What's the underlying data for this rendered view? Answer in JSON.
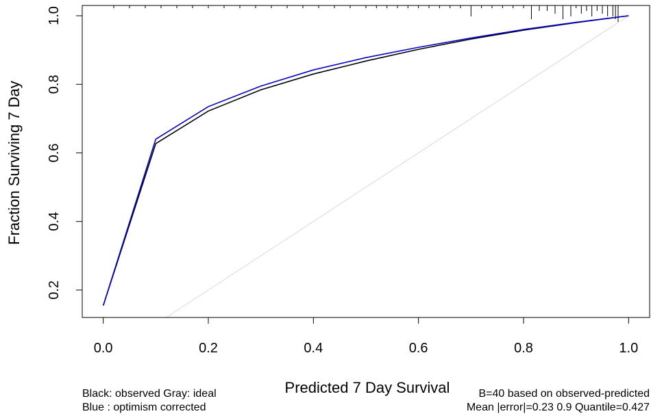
{
  "chart_data": {
    "type": "line",
    "xlabel": "Predicted  7 Day Survival",
    "ylabel": "Fraction Surviving 7 Day",
    "xlim": [
      -0.04,
      1.04
    ],
    "ylim": [
      0.12,
      1.03
    ],
    "x_ticks": [
      0.0,
      0.2,
      0.4,
      0.6,
      0.8,
      1.0
    ],
    "x_tick_labels": [
      "0.0",
      "0.2",
      "0.4",
      "0.6",
      "0.8",
      "1.0"
    ],
    "y_ticks": [
      0.2,
      0.4,
      0.6,
      0.8,
      1.0
    ],
    "y_tick_labels": [
      "0.2",
      "0.4",
      "0.6",
      "0.8",
      "1.0"
    ],
    "grid": false,
    "series": [
      {
        "name": "observed",
        "color": "#000000",
        "x": [
          0.0,
          0.1,
          0.2,
          0.3,
          0.4,
          0.5,
          0.6,
          0.7,
          0.8,
          0.9,
          1.0
        ],
        "y": [
          0.155,
          0.627,
          0.722,
          0.784,
          0.83,
          0.868,
          0.902,
          0.932,
          0.958,
          0.98,
          1.0
        ]
      },
      {
        "name": "optimism corrected",
        "color": "#0000cc",
        "x": [
          0.0,
          0.1,
          0.2,
          0.3,
          0.4,
          0.5,
          0.6,
          0.7,
          0.8,
          0.9,
          1.0
        ],
        "y": [
          0.155,
          0.64,
          0.735,
          0.795,
          0.842,
          0.878,
          0.908,
          0.935,
          0.96,
          0.981,
          1.0
        ]
      },
      {
        "name": "ideal",
        "color": "#d9d9d9",
        "x": [
          0.0,
          1.0
        ],
        "y": [
          0.0,
          1.0
        ]
      }
    ],
    "rug_x": [
      0.02,
      0.05,
      0.08,
      0.11,
      0.14,
      0.17,
      0.2,
      0.23,
      0.26,
      0.29,
      0.32,
      0.35,
      0.38,
      0.41,
      0.44,
      0.47,
      0.5,
      0.52,
      0.54,
      0.56,
      0.58,
      0.6,
      0.62,
      0.64,
      0.66,
      0.68,
      0.7,
      0.72,
      0.74,
      0.76,
      0.78,
      0.8,
      0.815,
      0.83,
      0.845,
      0.86,
      0.875,
      0.89,
      0.9,
      0.91,
      0.92,
      0.93,
      0.94,
      0.95,
      0.96,
      0.97,
      0.975,
      0.98
    ],
    "rug_heights": [
      1,
      1,
      1,
      1,
      1,
      1,
      1,
      1,
      1,
      1,
      1,
      1,
      1,
      1,
      1,
      1,
      1,
      1,
      1,
      1,
      1,
      1,
      1,
      1,
      1,
      1,
      4,
      1,
      1,
      1,
      1,
      1,
      5,
      2,
      2,
      3,
      5,
      4,
      1,
      3,
      2,
      4,
      2,
      3,
      4,
      4,
      5,
      6
    ]
  },
  "legend_left": {
    "line1": "Black: observed  Gray: ideal",
    "line2": "Blue : optimism corrected"
  },
  "legend_right": {
    "line1": "B=40 based on observed-predicted",
    "line2": "Mean |error|=0.23  0.9 Quantile=0.427"
  }
}
